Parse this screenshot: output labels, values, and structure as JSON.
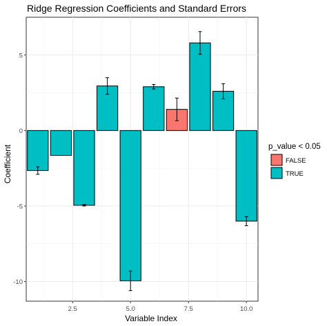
{
  "chart_data": {
    "type": "bar",
    "title": "Ridge Regression Coefficients and Standard Errors",
    "xlabel": "Variable Index",
    "ylabel": "Coefficient",
    "x": [
      1,
      2,
      3,
      4,
      5,
      6,
      7,
      8,
      9,
      10
    ],
    "values": [
      -2.65,
      -1.65,
      -4.95,
      2.95,
      -9.95,
      2.9,
      1.4,
      5.8,
      2.6,
      -6.0
    ],
    "errors": [
      0.25,
      0.0,
      0.05,
      0.55,
      0.65,
      0.15,
      0.75,
      0.75,
      0.5,
      0.3
    ],
    "significant": [
      true,
      true,
      true,
      true,
      true,
      true,
      false,
      true,
      true,
      true
    ],
    "xlim": [
      0.5,
      10.5
    ],
    "ylim": [
      -11.3,
      7.5
    ],
    "x_ticks": [
      2.5,
      5.0,
      7.5,
      10.0
    ],
    "x_tick_labels": [
      "2.5",
      "5.0",
      "7.5",
      "10.0"
    ],
    "y_ticks": [
      -10,
      -5,
      0,
      5
    ],
    "y_tick_labels": [
      "-10",
      "-5",
      "0",
      "5"
    ],
    "grid": true,
    "legend": {
      "title": "p_value < 0.05",
      "position": "right",
      "entries": [
        {
          "label": "FALSE",
          "color": "#f8766d"
        },
        {
          "label": "TRUE",
          "color": "#00bfc4"
        }
      ]
    }
  }
}
